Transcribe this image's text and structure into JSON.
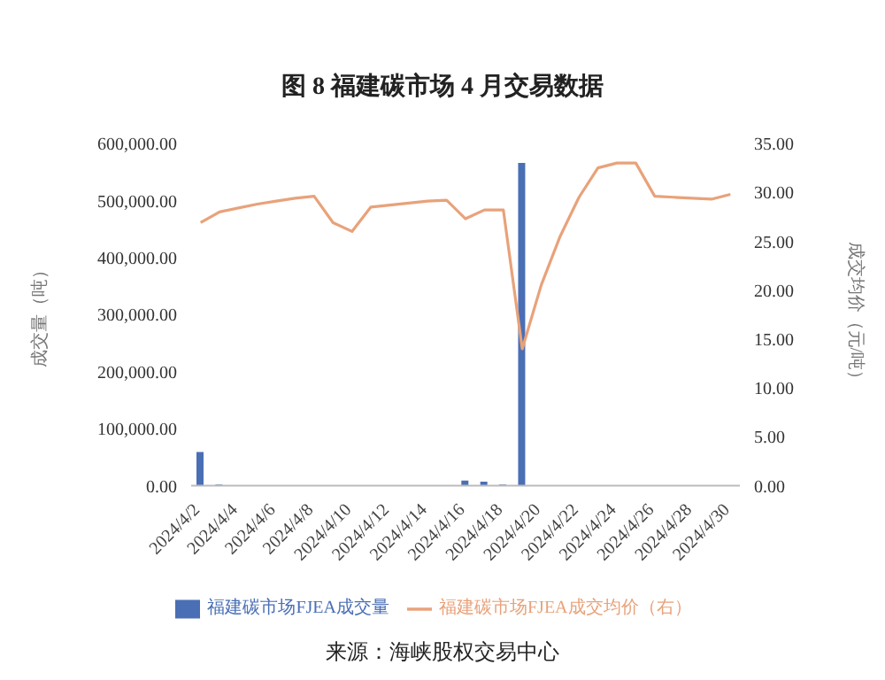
{
  "chart_data": {
    "type": "bar",
    "title": "图 8  福建碳市场 4 月交易数据",
    "categories": [
      "2024/4/2",
      null,
      "2024/4/4",
      null,
      "2024/4/6",
      null,
      "2024/4/8",
      null,
      "2024/4/10",
      null,
      "2024/4/12",
      null,
      "2024/4/14",
      null,
      "2024/4/16",
      null,
      "2024/4/18",
      null,
      "2024/4/20",
      null,
      "2024/4/22",
      null,
      "2024/4/24",
      null,
      "2024/4/26",
      null,
      "2024/4/28",
      null,
      "2024/4/30"
    ],
    "series": [
      {
        "name": "福建碳市场FJEA成交量",
        "color": "#4a6fb5",
        "values": [
          59000,
          2000,
          null,
          null,
          null,
          null,
          null,
          1000,
          1000,
          null,
          null,
          null,
          null,
          null,
          9000,
          7000,
          2000,
          566000,
          null,
          null,
          null,
          null,
          null,
          null,
          null,
          null,
          null,
          null,
          null
        ]
      },
      {
        "name": "福建碳市场FJEA成交均价（右）",
        "type": "line",
        "axis": "y2",
        "color": "#e8a27a",
        "values": [
          26.9,
          28.0,
          28.4,
          28.8,
          29.1,
          29.4,
          29.6,
          26.9,
          26.0,
          28.5,
          28.7,
          28.9,
          29.1,
          29.2,
          27.3,
          28.2,
          28.2,
          14.0,
          20.5,
          25.5,
          29.5,
          32.5,
          33.0,
          33.0,
          29.6,
          29.5,
          29.4,
          29.3,
          29.8
        ]
      }
    ],
    "ylabel": "成交量（吨）",
    "y2label": "成交均价（元/吨）",
    "ylim": [
      0,
      600000
    ],
    "yticks": [
      {
        "value": 0,
        "label": "0.00"
      },
      {
        "value": 100000,
        "label": "100,000.00"
      },
      {
        "value": 200000,
        "label": "200,000.00"
      },
      {
        "value": 300000,
        "label": "300,000.00"
      },
      {
        "value": 400000,
        "label": "400,000.00"
      },
      {
        "value": 500000,
        "label": "500,000.00"
      },
      {
        "value": 600000,
        "label": "600,000.00"
      }
    ],
    "y2lim": [
      0,
      35
    ],
    "y2ticks": [
      {
        "value": 0,
        "label": "0.00"
      },
      {
        "value": 5,
        "label": "5.00"
      },
      {
        "value": 10,
        "label": "10.00"
      },
      {
        "value": 15,
        "label": "15.00"
      },
      {
        "value": 20,
        "label": "20.00"
      },
      {
        "value": 25,
        "label": "25.00"
      },
      {
        "value": 30,
        "label": "30.00"
      },
      {
        "value": 35,
        "label": "35.00"
      }
    ],
    "grid": false,
    "legend": "bottom",
    "marker": "none",
    "line_style": "solid",
    "annotations": [
      "来源：海峡股权交易中心"
    ]
  }
}
